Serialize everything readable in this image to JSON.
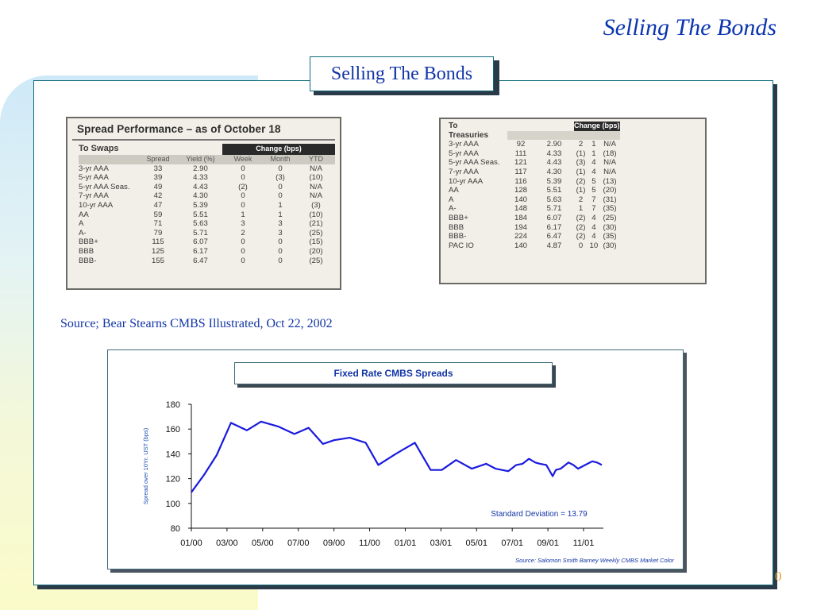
{
  "slide": {
    "heading": "Selling The Bonds",
    "box_title": "Selling The Bonds",
    "page_number": "0",
    "source_note": "Source; Bear Stearns CMBS Illustrated, Oct 22, 2002"
  },
  "colors": {
    "title_blue": "#1235a6",
    "frame_teal": "#0f6a7a",
    "line_blue": "#1a1adf",
    "page_number_orange": "#e0a030"
  },
  "swaps_table": {
    "title": "Spread Performance – as of October 18",
    "section": "To Swaps",
    "change_header": "Change (bps)",
    "columns": [
      "Spread",
      "Yield (%)",
      "Week",
      "Month",
      "YTD"
    ],
    "rows": [
      [
        "3-yr AAA",
        "33",
        "2.90",
        "0",
        "0",
        "N/A"
      ],
      [
        "5-yr AAA",
        "39",
        "4.33",
        "0",
        "(3)",
        "(10)"
      ],
      [
        "5-yr AAA Seas.",
        "49",
        "4.43",
        "(2)",
        "0",
        "N/A"
      ],
      [
        "7-yr AAA",
        "42",
        "4.30",
        "0",
        "0",
        "N/A"
      ],
      [
        "10-yr AAA",
        "47",
        "5.39",
        "0",
        "1",
        "(3)"
      ],
      [
        "AA",
        "59",
        "5.51",
        "1",
        "1",
        "(10)"
      ],
      [
        "A",
        "71",
        "5.63",
        "3",
        "3",
        "(21)"
      ],
      [
        "A-",
        "79",
        "5.71",
        "2",
        "3",
        "(25)"
      ],
      [
        "BBB+",
        "115",
        "6.07",
        "0",
        "0",
        "(15)"
      ],
      [
        "BBB",
        "125",
        "6.17",
        "0",
        "0",
        "(20)"
      ],
      [
        "BBB-",
        "155",
        "6.47",
        "0",
        "0",
        "(25)"
      ]
    ]
  },
  "treasuries_table": {
    "section_line1": "To",
    "section_line2": "Treasuries",
    "change_header": "Change (bps)",
    "rows": [
      [
        "3-yr AAA",
        "92",
        "2.90",
        "2",
        "1",
        "N/A"
      ],
      [
        "5-yr AAA",
        "111",
        "4.33",
        "(1)",
        "1",
        "(18)"
      ],
      [
        "5-yr AAA Seas.",
        "121",
        "4.43",
        "(3)",
        "4",
        "N/A"
      ],
      [
        "7-yr AAA",
        "117",
        "4.30",
        "(1)",
        "4",
        "N/A"
      ],
      [
        "10-yr AAA",
        "116",
        "5.39",
        "(2)",
        "5",
        "(13)"
      ],
      [
        "AA",
        "128",
        "5.51",
        "(1)",
        "5",
        "(20)"
      ],
      [
        "A",
        "140",
        "5.63",
        "2",
        "7",
        "(31)"
      ],
      [
        "A-",
        "148",
        "5.71",
        "1",
        "7",
        "(35)"
      ],
      [
        "BBB+",
        "184",
        "6.07",
        "(2)",
        "4",
        "(25)"
      ],
      [
        "BBB",
        "194",
        "6.17",
        "(2)",
        "4",
        "(30)"
      ],
      [
        "BBB-",
        "224",
        "6.47",
        "(2)",
        "4",
        "(35)"
      ],
      [
        "PAC IO",
        "140",
        "4.87",
        "0",
        "10",
        "(30)"
      ]
    ]
  },
  "chart_data": {
    "type": "line",
    "title": "Fixed Rate CMBS Spreads",
    "ylabel": "Spread over 10Yr. UST (bps)",
    "xlabel": "",
    "ylim": [
      80,
      180
    ],
    "yticks": [
      80,
      100,
      120,
      140,
      160,
      180
    ],
    "xticks": [
      "01/00",
      "03/00",
      "05/00",
      "07/00",
      "09/00",
      "11/00",
      "01/01",
      "03/01",
      "05/01",
      "07/01",
      "09/01",
      "11/01"
    ],
    "grid": false,
    "annotation": "Standard Deviation = 13.79",
    "source": "Source: Salomon Smith Barney Weekly CMBS Market Color",
    "series": [
      {
        "color": "#1a1adf",
        "x": [
          0,
          0.8,
          1.6,
          2.5,
          3.5,
          4.4,
          5.5,
          6.5,
          7.4,
          8.3,
          9.0,
          10.0,
          11.0,
          11.8,
          12.9,
          14.1,
          15.1,
          15.8,
          16.7,
          17.7,
          18.6,
          19.2,
          19.6,
          20.0,
          20.5,
          20.9,
          21.3,
          21.7,
          22.0,
          22.4,
          22.8,
          23.0,
          23.3,
          23.5,
          23.8,
          24.1,
          24.4,
          24.7,
          25.0,
          25.3,
          25.6,
          25.9
        ],
        "values": [
          109,
          123,
          139,
          165,
          159,
          166,
          162,
          156,
          161,
          148,
          151,
          153,
          149,
          131,
          140,
          149,
          127,
          127,
          135,
          128,
          132,
          128,
          127,
          126,
          131,
          132,
          136,
          133,
          132,
          131,
          122,
          127,
          128,
          130,
          133,
          131,
          128,
          130,
          132,
          134,
          133,
          131
        ]
      }
    ]
  }
}
